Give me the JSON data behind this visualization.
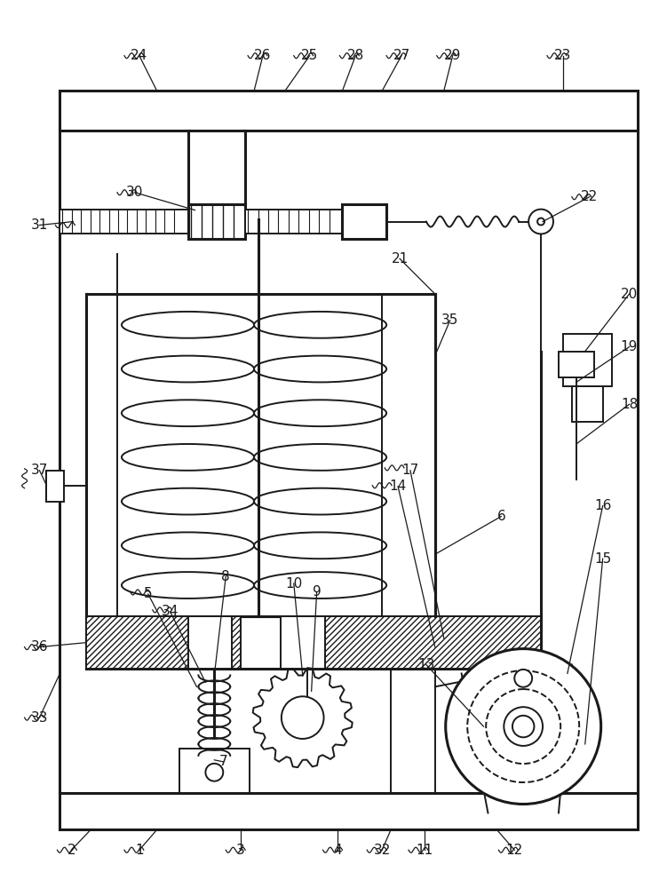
{
  "bg_color": "#ffffff",
  "lc": "#1a1a1a",
  "lw": 1.4,
  "lw2": 2.2,
  "fig_w": 7.51,
  "fig_h": 10.0
}
